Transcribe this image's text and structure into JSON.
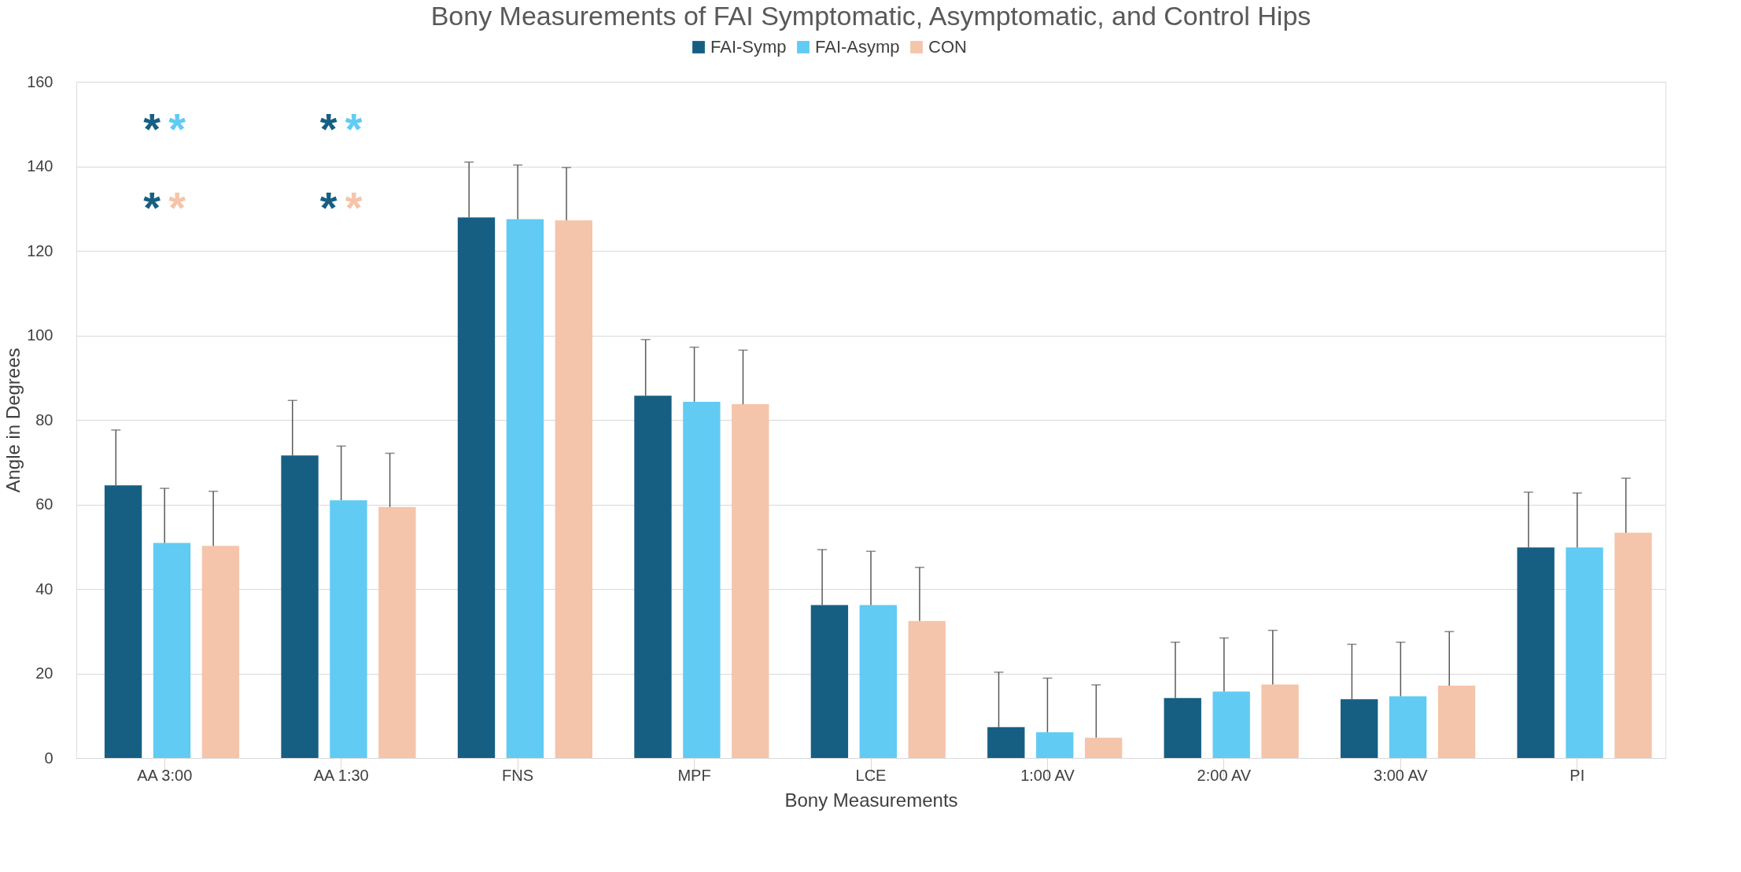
{
  "chart_data": {
    "type": "bar",
    "title": "Bony Measurements of FAI Symptomatic, Asymptomatic, and Control Hips",
    "xlabel": "Bony Measurements",
    "ylabel": "Angle in Degrees",
    "categories": [
      "AA 3:00",
      "AA 1:30",
      "FNS",
      "MPF",
      "LCE",
      "1:00 AV",
      "2:00 AV",
      "3:00 AV",
      "PI"
    ],
    "series": [
      {
        "name": "FAI-Symp",
        "color": "#165f82",
        "values": [
          64.5,
          71.6,
          127.9,
          85.7,
          36.2,
          7.3,
          14.2,
          13.9,
          49.8
        ],
        "errors": [
          [
            64.5,
            77.6
          ],
          [
            71.6,
            84.6
          ],
          [
            127.9,
            141.0
          ],
          [
            85.7,
            99.0
          ],
          [
            36.2,
            49.3
          ],
          [
            7.3,
            20.3
          ],
          [
            14.2,
            27.4
          ],
          [
            13.9,
            26.9
          ],
          [
            49.8,
            62.9
          ]
        ]
      },
      {
        "name": "FAI-Asymp",
        "color": "#61cbf3",
        "values": [
          50.9,
          61.0,
          127.5,
          84.3,
          36.2,
          6.1,
          15.7,
          14.6,
          49.8
        ],
        "errors": [
          [
            50.9,
            63.8
          ],
          [
            61.0,
            73.8
          ],
          [
            127.5,
            140.3
          ],
          [
            84.3,
            97.2
          ],
          [
            36.2,
            48.9
          ],
          [
            6.1,
            18.9
          ],
          [
            15.7,
            28.4
          ],
          [
            14.6,
            27.4
          ],
          [
            49.8,
            62.7
          ]
        ]
      },
      {
        "name": "CON",
        "color": "#f4c5aa",
        "values": [
          50.2,
          59.4,
          127.2,
          83.7,
          32.4,
          4.8,
          17.4,
          17.1,
          53.3
        ],
        "errors": [
          [
            50.2,
            63.1
          ],
          [
            59.4,
            72.1
          ],
          [
            127.2,
            139.7
          ],
          [
            83.7,
            96.5
          ],
          [
            32.4,
            45.1
          ],
          [
            4.8,
            17.3
          ],
          [
            17.4,
            30.2
          ],
          [
            17.1,
            29.9
          ],
          [
            53.3,
            66.2
          ]
        ]
      }
    ],
    "ylim": [
      0,
      160
    ],
    "yticks": [
      0,
      20,
      40,
      60,
      80,
      100,
      120,
      140,
      160
    ],
    "grid": "y",
    "legend": "top",
    "annotations": [
      "*",
      "*",
      "*",
      "*",
      "*",
      "*",
      "*",
      "*"
    ]
  }
}
